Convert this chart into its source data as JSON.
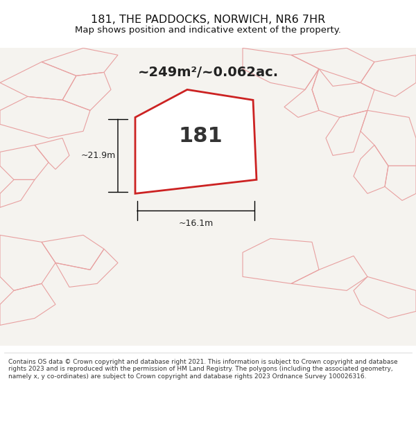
{
  "title": "181, THE PADDOCKS, NORWICH, NR6 7HR",
  "subtitle": "Map shows position and indicative extent of the property.",
  "area_label": "~249m²/~0.062ac.",
  "plot_number": "181",
  "dim_width": "~16.1m",
  "dim_height": "~21.9m",
  "footer_text": "Contains OS data © Crown copyright and database right 2021. This information is subject to Crown copyright and database rights 2023 and is reproduced with the permission of HM Land Registry. The polygons (including the associated geometry, namely x, y co-ordinates) are subject to Crown copyright and database rights 2023 Ordnance Survey 100026316.",
  "bg_color": "#f0eeea",
  "map_bg": "#f5f3ef",
  "footer_bg": "#ffffff",
  "main_polygon_color": "#cc2222",
  "surrounding_polygon_color": "#e8a0a0",
  "title_color": "#111111",
  "footer_color": "#333333"
}
